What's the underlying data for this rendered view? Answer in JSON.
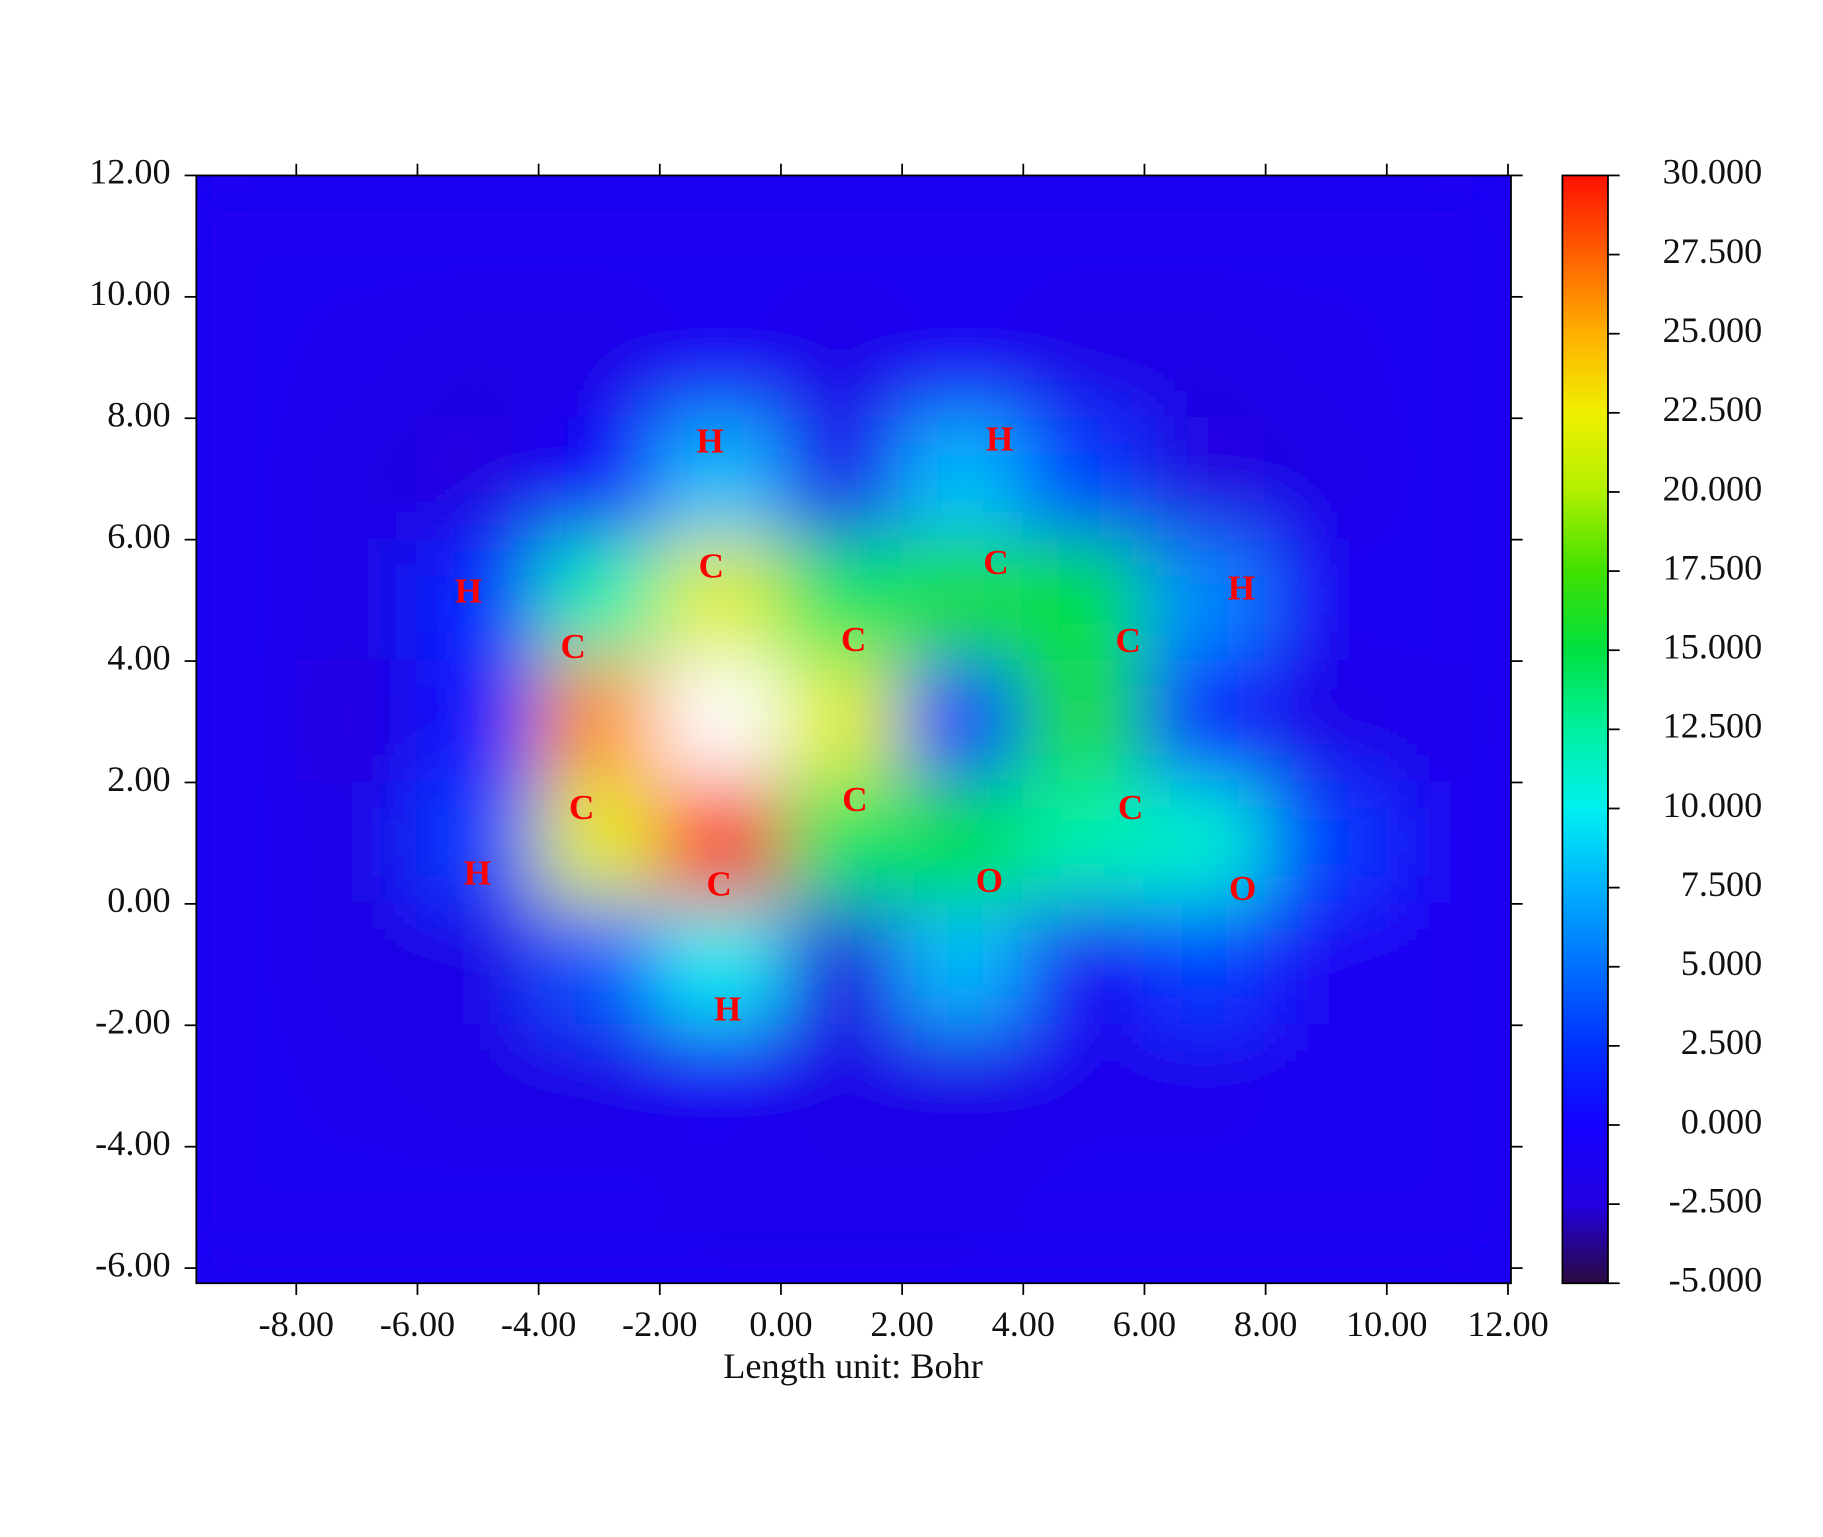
{
  "chart_data": {
    "type": "heatmap",
    "xlabel": "Length unit: Bohr",
    "xlim": [
      -9.65,
      12.05
    ],
    "ylim": [
      -6.25,
      12
    ],
    "xticks": [
      {
        "value": -8,
        "label": "-8.00"
      },
      {
        "value": -6,
        "label": "-6.00"
      },
      {
        "value": -4,
        "label": "-4.00"
      },
      {
        "value": -2,
        "label": "-2.00"
      },
      {
        "value": 0,
        "label": "0.00"
      },
      {
        "value": 2,
        "label": "2.00"
      },
      {
        "value": 4,
        "label": "4.00"
      },
      {
        "value": 6,
        "label": "6.00"
      },
      {
        "value": 8,
        "label": "8.00"
      },
      {
        "value": 10,
        "label": "10.00"
      },
      {
        "value": 12,
        "label": "12.00"
      }
    ],
    "yticks": [
      {
        "value": -6,
        "label": "-6.00"
      },
      {
        "value": -4,
        "label": "-4.00"
      },
      {
        "value": -2,
        "label": "-2.00"
      },
      {
        "value": 0,
        "label": "0.00"
      },
      {
        "value": 2,
        "label": "2.00"
      },
      {
        "value": 4,
        "label": "4.00"
      },
      {
        "value": 6,
        "label": "6.00"
      },
      {
        "value": 8,
        "label": "8.00"
      },
      {
        "value": 10,
        "label": "10.00"
      },
      {
        "value": 12,
        "label": "12.00"
      }
    ],
    "zlim": [
      -5,
      30
    ],
    "zticks": [
      {
        "value": 30,
        "label": "30.000"
      },
      {
        "value": 27.5,
        "label": "27.500"
      },
      {
        "value": 25,
        "label": "25.000"
      },
      {
        "value": 22.5,
        "label": "22.500"
      },
      {
        "value": 20,
        "label": "20.000"
      },
      {
        "value": 17.5,
        "label": "17.500"
      },
      {
        "value": 15,
        "label": "15.000"
      },
      {
        "value": 12.5,
        "label": "12.500"
      },
      {
        "value": 10,
        "label": "10.000"
      },
      {
        "value": 7.5,
        "label": "7.500"
      },
      {
        "value": 5,
        "label": "5.000"
      },
      {
        "value": 2.5,
        "label": "2.500"
      },
      {
        "value": 0,
        "label": "0.000"
      },
      {
        "value": -2.5,
        "label": "-2.500"
      },
      {
        "value": -5,
        "label": "-5.000"
      }
    ],
    "colors": [
      "#2a0a40",
      "#2200e0",
      "#1400ff",
      "#0030ff",
      "#0070ff",
      "#00b0ff",
      "#00f0f0",
      "#00f0a0",
      "#00e040",
      "#40e000",
      "#b0f000",
      "#f0f000",
      "#ffb000",
      "#ff6000",
      "#ff1000"
    ],
    "over_color": "#ffffff",
    "x": [
      -9,
      -7,
      -5,
      -3,
      -1,
      1,
      3,
      5,
      7,
      9,
      11
    ],
    "y": [
      11,
      9,
      7,
      5,
      3,
      1,
      -1,
      -3,
      -5
    ],
    "z": [
      [
        -1,
        -1,
        -1,
        -1,
        -1,
        -1,
        -1,
        -1,
        -1,
        -1,
        -1
      ],
      [
        -1,
        -1.5,
        -2,
        -2,
        -1,
        -2,
        -1,
        -2,
        -2,
        -1.5,
        -1
      ],
      [
        -1,
        -2,
        -2.5,
        -0.5,
        8,
        -1.5,
        8,
        3,
        -2.5,
        -2,
        -1
      ],
      [
        -1,
        -2,
        2,
        12,
        22,
        14,
        16,
        15,
        6,
        -1,
        -1
      ],
      [
        -1,
        -2.5,
        1,
        26,
        35,
        22,
        2,
        16,
        1,
        -2,
        -1.5
      ],
      [
        -1,
        -2,
        3,
        22,
        30,
        14,
        15,
        12,
        11,
        3,
        -1
      ],
      [
        -1,
        -2,
        -2,
        4,
        10,
        -2.5,
        8,
        -1,
        3,
        -1,
        -1
      ],
      [
        -1,
        -1.5,
        -2,
        -2,
        -1,
        -2,
        -2,
        -1.5,
        -1.5,
        -1,
        -1
      ],
      [
        -1,
        -1,
        -1,
        -1,
        -1.5,
        -1.5,
        -1.5,
        -1,
        -1,
        -1,
        -1
      ]
    ],
    "atoms": [
      {
        "label": "H",
        "x": -1.17,
        "y": 7.57
      },
      {
        "label": "H",
        "x": 3.61,
        "y": 7.6
      },
      {
        "label": "C",
        "x": -1.15,
        "y": 5.51
      },
      {
        "label": "C",
        "x": 3.55,
        "y": 5.57
      },
      {
        "label": "H",
        "x": -5.16,
        "y": 5.1
      },
      {
        "label": "H",
        "x": 7.6,
        "y": 5.15
      },
      {
        "label": "C",
        "x": -3.43,
        "y": 4.18
      },
      {
        "label": "C",
        "x": 1.2,
        "y": 4.3
      },
      {
        "label": "C",
        "x": 5.73,
        "y": 4.28
      },
      {
        "label": "C",
        "x": -3.29,
        "y": 1.53
      },
      {
        "label": "C",
        "x": 1.22,
        "y": 1.66
      },
      {
        "label": "C",
        "x": 5.77,
        "y": 1.53
      },
      {
        "label": "H",
        "x": -5.01,
        "y": 0.45
      },
      {
        "label": "O",
        "x": 3.44,
        "y": 0.33
      },
      {
        "label": "O",
        "x": 7.62,
        "y": 0.2
      },
      {
        "label": "C",
        "x": -1.02,
        "y": 0.27
      },
      {
        "label": "H",
        "x": -0.88,
        "y": -1.79
      }
    ]
  }
}
